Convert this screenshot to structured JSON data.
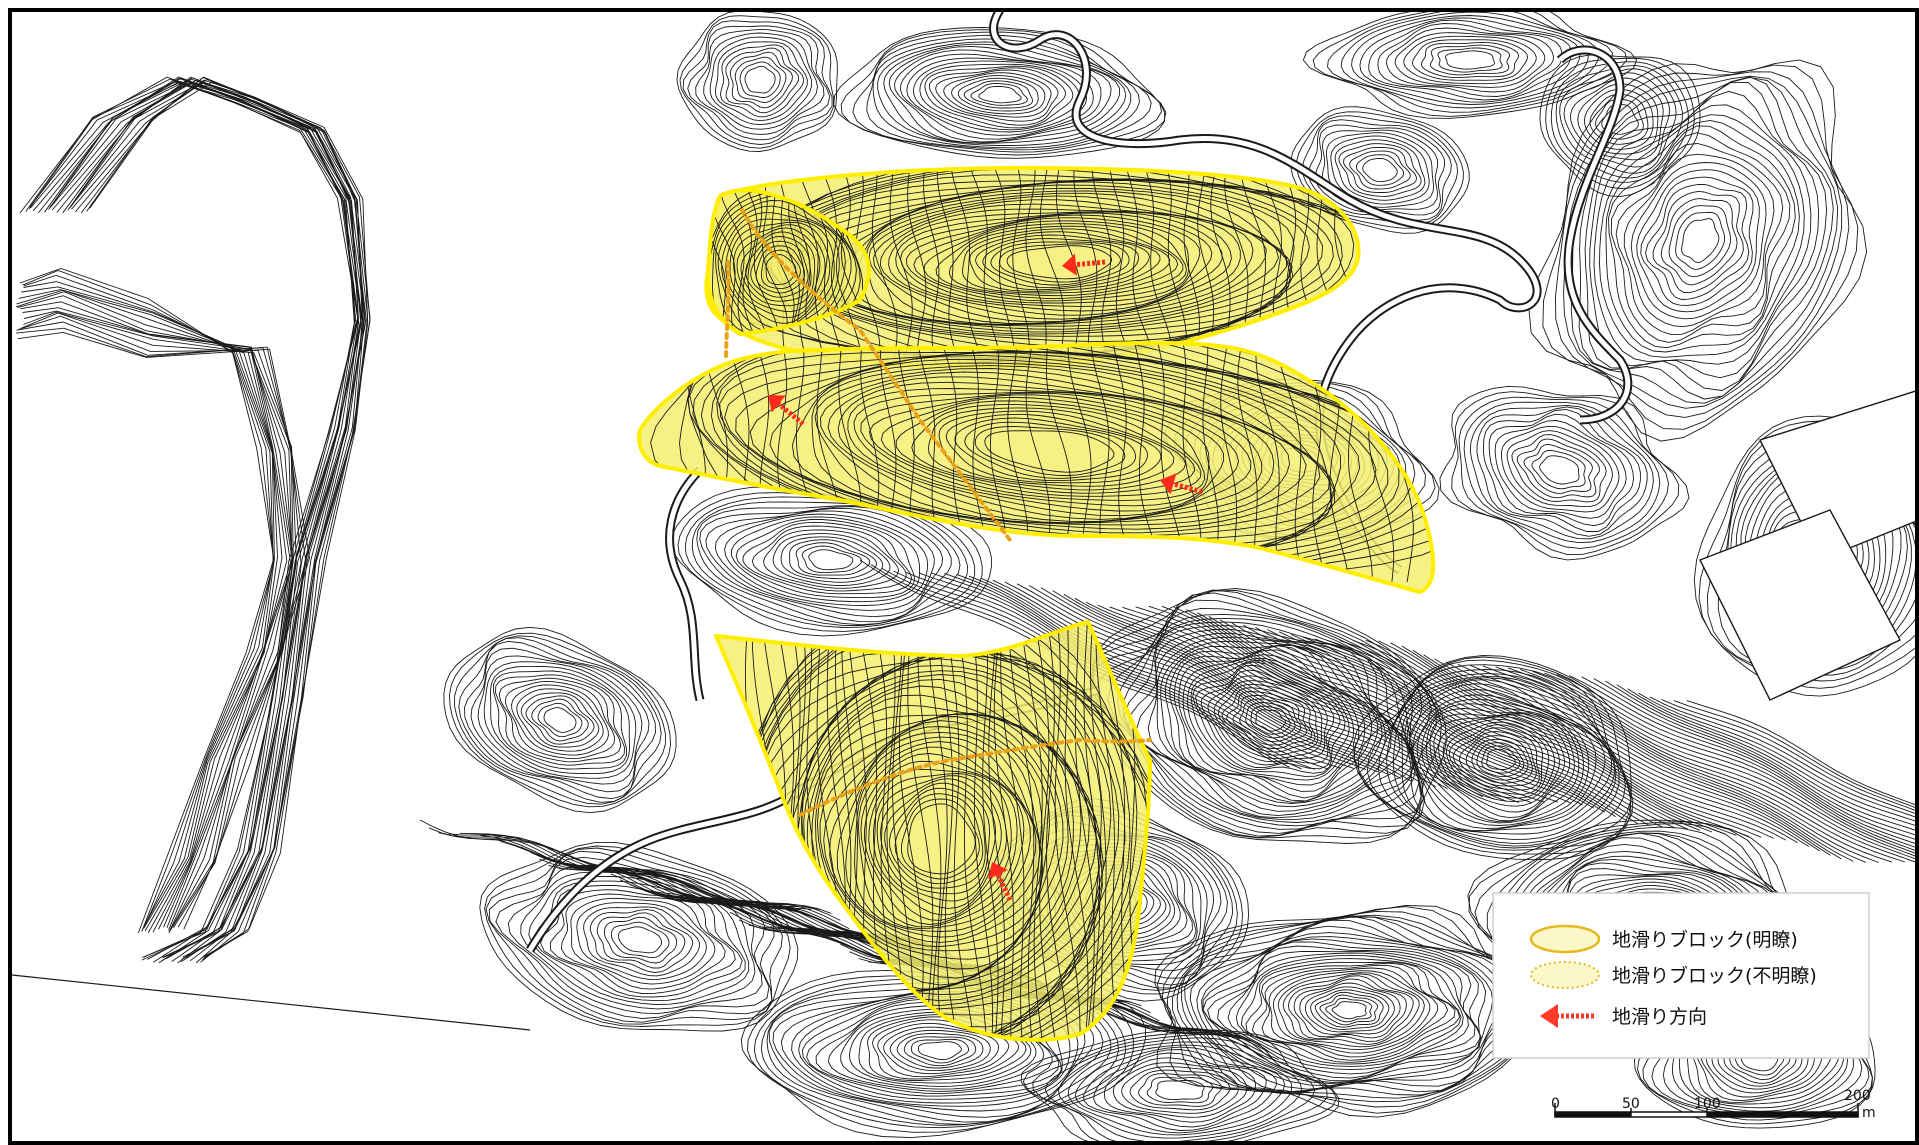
{
  "legend": {
    "items": [
      {
        "label": "地滑りブロック(明瞭)",
        "symbol": "clear-block"
      },
      {
        "label": "地滑りブロック(不明瞭)",
        "symbol": "unclear-block"
      },
      {
        "label": "地滑り方向",
        "symbol": "direction-arrow"
      }
    ]
  },
  "scale_bar": {
    "ticks": [
      "0",
      "50",
      "100",
      "200"
    ],
    "unit": "m"
  },
  "colors": {
    "block_fill": "#f4ee6e",
    "block_outline": "#ffee00",
    "unclear_line": "#e8a21a",
    "arrow": "#ff2a1a",
    "contour": "#1a1a1a"
  }
}
